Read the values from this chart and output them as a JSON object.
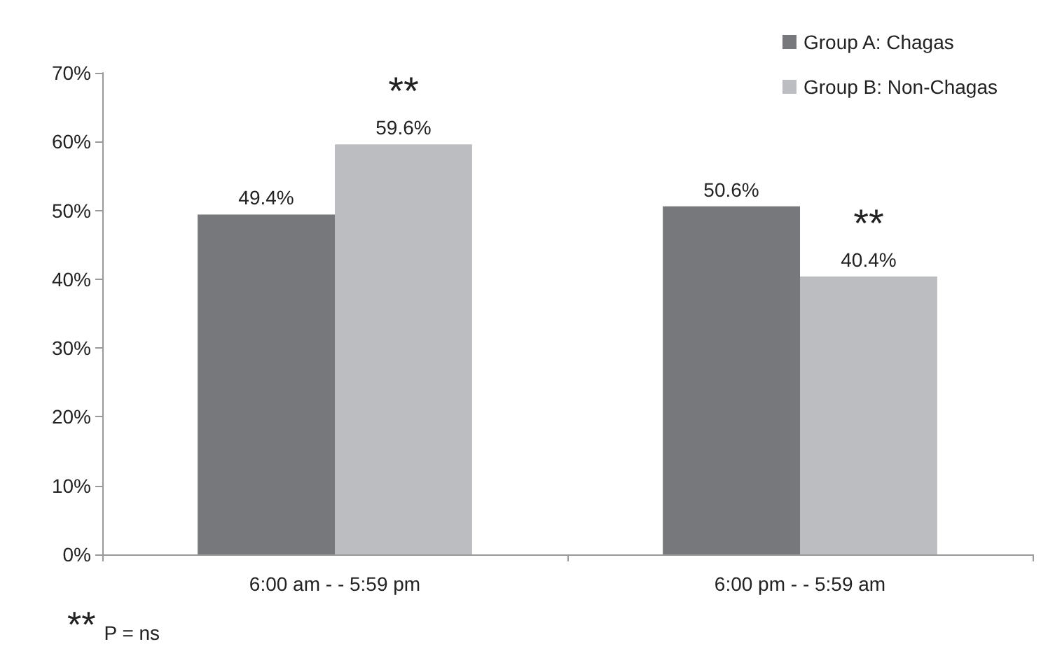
{
  "chart_data": {
    "type": "bar",
    "categories": [
      "6:00 am - - 5:59 pm",
      "6:00 pm - - 5:59 am"
    ],
    "series": [
      {
        "name": "Group A: Chagas",
        "color": "#77787b",
        "values": [
          49.4,
          50.6
        ],
        "value_labels": [
          "49.4%",
          "50.6%"
        ]
      },
      {
        "name": "Group B: Non-Chagas",
        "color": "#bcbdc0",
        "values": [
          59.6,
          40.4
        ],
        "value_labels": [
          "59.6%",
          "40.4%"
        ]
      }
    ],
    "ylim": [
      0,
      70
    ],
    "yticks": [
      {
        "value": 0,
        "label": "0%"
      },
      {
        "value": 10,
        "label": "10%"
      },
      {
        "value": 20,
        "label": "20%"
      },
      {
        "value": 30,
        "label": "30%"
      },
      {
        "value": 40,
        "label": "40%"
      },
      {
        "value": 50,
        "label": "50%"
      },
      {
        "value": 60,
        "label": "60%"
      },
      {
        "value": 70,
        "label": "70%"
      }
    ],
    "grid": false,
    "legend": "top right",
    "annotations": [
      {
        "text": "**",
        "x": "6:00 am - - 5:59 pm",
        "y": 59.6
      },
      {
        "text": "**",
        "x": "6:00 pm - - 5:59 am",
        "y": 40.4
      },
      "** P = ns"
    ]
  }
}
